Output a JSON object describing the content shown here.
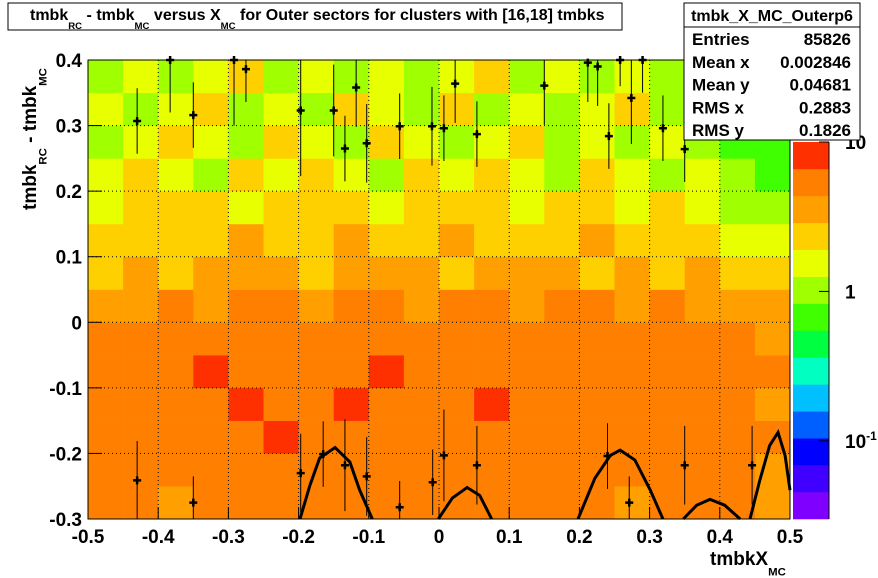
{
  "chart_data": {
    "type": "heatmap",
    "title_parts": [
      {
        "text": "tmbk",
        "sub": false
      },
      {
        "text": "RC",
        "sub": true
      },
      {
        "text": " - tmbk",
        "sub": false
      },
      {
        "text": "MC",
        "sub": true
      },
      {
        "text": " versus X",
        "sub": false
      },
      {
        "text": "MC",
        "sub": true
      },
      {
        "text": " for Outer sectors for clusters with [16,18] tmbks",
        "sub": false
      }
    ],
    "x_label_parts": [
      {
        "text": "tmbkX",
        "sub": false
      },
      {
        "text": "MC",
        "sub": true
      }
    ],
    "y_label_parts": [
      {
        "text": "tmbk",
        "sub": false
      },
      {
        "text": "RC",
        "sub": true
      },
      {
        "text": " - tmbk",
        "sub": false
      },
      {
        "text": "MC",
        "sub": true
      }
    ],
    "xlim": [
      -0.5,
      0.5
    ],
    "ylim": [
      -0.3,
      0.4
    ],
    "xticks": [
      -0.5,
      -0.4,
      -0.3,
      -0.2,
      -0.1,
      0,
      0.1,
      0.2,
      0.3,
      0.4,
      0.5
    ],
    "yticks": [
      -0.3,
      -0.2,
      -0.1,
      0,
      0.1,
      0.2,
      0.3,
      0.4
    ],
    "grid": true,
    "zlim": [
      0.03,
      10
    ],
    "zlog": true,
    "zticks": [
      10,
      1,
      {
        "value": 0.1,
        "label": "10",
        "sup": "-1"
      }
    ],
    "palette": [
      "#7f00ff",
      "#3f00ff",
      "#0000ff",
      "#0060ff",
      "#00c0ff",
      "#00ffc0",
      "#00ff40",
      "#40ff00",
      "#a0ff00",
      "#e8ff00",
      "#ffd000",
      "#ffa000",
      "#ff8000",
      "#ff3000"
    ],
    "xbins": [
      -0.5,
      -0.45,
      -0.4,
      -0.35,
      -0.3,
      -0.25,
      -0.2,
      -0.15,
      -0.1,
      -0.05,
      0,
      0.05,
      0.1,
      0.15,
      0.2,
      0.25,
      0.3,
      0.35,
      0.4,
      0.45,
      0.5
    ],
    "ybins": [
      -0.3,
      -0.25,
      -0.2,
      -0.15,
      -0.1,
      -0.05,
      0,
      0.05,
      0.1,
      0.15,
      0.2,
      0.25,
      0.3,
      0.35,
      0.4
    ],
    "z": [
      [
        4.5,
        5,
        4,
        5.5,
        6,
        5,
        4.5,
        5,
        6,
        5.5,
        5,
        4.5,
        6,
        5,
        5,
        4,
        5,
        4.5,
        5,
        3.5
      ],
      [
        5,
        6,
        5.5,
        5,
        6.5,
        5,
        5.5,
        6,
        5,
        5.5,
        6,
        5,
        5.5,
        6,
        5,
        5,
        5.5,
        5,
        4.5,
        4
      ],
      [
        5.5,
        6,
        6.5,
        5,
        6,
        7,
        6,
        5.5,
        6.5,
        6,
        5.5,
        6,
        6.5,
        6,
        5.5,
        6,
        5,
        5.5,
        5,
        4.5
      ],
      [
        6,
        6.5,
        5.5,
        6,
        7,
        6,
        6.5,
        7,
        6,
        6.5,
        6,
        7,
        6,
        6.5,
        6,
        5.5,
        6,
        5,
        5.5,
        4
      ],
      [
        5.5,
        6,
        6.5,
        7,
        6,
        6.5,
        5.5,
        6,
        7,
        6,
        6.5,
        6,
        5.5,
        6,
        6.5,
        6,
        5.5,
        6,
        5,
        4.5
      ],
      [
        5,
        5.5,
        6,
        5.5,
        6,
        5,
        6,
        5.5,
        5,
        6,
        5.5,
        6,
        5,
        5.5,
        6,
        5,
        5.5,
        5,
        4.5,
        4
      ],
      [
        3.5,
        4,
        4.5,
        4,
        5,
        4.5,
        4,
        5,
        4.5,
        4,
        5,
        4.5,
        4,
        4.5,
        5,
        4,
        4.5,
        4,
        3.5,
        3
      ],
      [
        2.5,
        3,
        2.5,
        3,
        3.5,
        3,
        2.5,
        3,
        3.5,
        3,
        2.5,
        3,
        3.5,
        3,
        2.5,
        3,
        2.5,
        3,
        2.5,
        2
      ],
      [
        2,
        2.5,
        2,
        2.5,
        3,
        2,
        2.5,
        3,
        2,
        2.5,
        3,
        2.5,
        2,
        2.5,
        3,
        2,
        2.5,
        2,
        1.5,
        1.5
      ],
      [
        1.5,
        2,
        2.5,
        2,
        1.5,
        2,
        2.5,
        2,
        1.5,
        2,
        2.5,
        2,
        1.5,
        2,
        2.5,
        1.5,
        2,
        1.5,
        1.2,
        1
      ],
      [
        1.5,
        2,
        1.5,
        1,
        2,
        1.5,
        2,
        1.5,
        1,
        2,
        1.5,
        2,
        1.5,
        1,
        2,
        1.5,
        1,
        1.5,
        1,
        0.8
      ],
      [
        1,
        1.5,
        2,
        1.5,
        1,
        2,
        1.5,
        1,
        2,
        1.5,
        1,
        1.5,
        2,
        1,
        1.5,
        1,
        1.5,
        1,
        0.8,
        0.7
      ],
      [
        1.5,
        1,
        1.5,
        2,
        1,
        1.5,
        1,
        2,
        1.5,
        1,
        2,
        1,
        1.5,
        1,
        1.5,
        2,
        1,
        1.5,
        1,
        0.8
      ],
      [
        1,
        1.5,
        1,
        1.5,
        2,
        1,
        1.5,
        1,
        1.5,
        1,
        1.5,
        2,
        1,
        1.5,
        1,
        1.5,
        1,
        1,
        0.8,
        1
      ]
    ],
    "profile": {
      "color": "#000000",
      "x": [
        -0.43,
        -0.383,
        -0.35,
        -0.292,
        -0.275,
        -0.197,
        -0.15,
        -0.134,
        -0.118,
        -0.103,
        -0.056,
        -0.01,
        0.007,
        0.023,
        0.054,
        0.15,
        0.212,
        0.226,
        0.242,
        0.258,
        0.274,
        0.29,
        0.319,
        0.35,
        -0.43,
        -0.35,
        -0.197,
        -0.165,
        -0.134,
        -0.103,
        -0.056,
        -0.009,
        0.007,
        0.054,
        0.24,
        0.271,
        0.35,
        0.446
      ],
      "y": [
        0.307,
        0.4,
        0.316,
        0.4,
        0.386,
        0.323,
        0.323,
        0.265,
        0.358,
        0.273,
        0.299,
        0.299,
        0.296,
        0.364,
        0.287,
        0.361,
        0.396,
        0.39,
        0.284,
        0.4,
        0.342,
        0.4,
        0.296,
        0.264,
        -0.241,
        -0.275,
        -0.23,
        -0.201,
        -0.218,
        -0.235,
        -0.282,
        -0.244,
        -0.203,
        -0.218,
        -0.204,
        -0.275,
        -0.218,
        -0.218
      ],
      "yerr": [
        0.05,
        0.08,
        0.05,
        0.1,
        0.05,
        0.1,
        0.07,
        0.05,
        0.06,
        0.06,
        0.05,
        0.06,
        0.05,
        0.06,
        0.05,
        0.06,
        0.06,
        0.06,
        0.05,
        0.04,
        0.07,
        0.05,
        0.05,
        0.05,
        0.06,
        0.04,
        0.06,
        0.05,
        0.07,
        0.06,
        0.04,
        0.05,
        0.07,
        0.06,
        0.05,
        0.04,
        0.06,
        0.06
      ]
    },
    "fit": {
      "color": "#000000",
      "x": [
        -0.198,
        -0.184,
        -0.17,
        -0.148,
        -0.127,
        -0.113,
        -0.095,
        null,
        -0.001,
        0.019,
        0.04,
        0.058,
        0.075,
        null,
        0.198,
        0.222,
        0.244,
        0.258,
        0.279,
        0.301,
        0.319,
        null,
        0.348,
        0.367,
        0.386,
        0.407,
        0.429,
        null,
        0.443,
        0.457,
        0.471,
        0.483,
        0.493,
        0.5
      ],
      "y": [
        -0.3,
        -0.249,
        -0.207,
        -0.191,
        -0.213,
        -0.256,
        -0.3,
        null,
        -0.3,
        -0.268,
        -0.252,
        -0.264,
        -0.3,
        null,
        -0.3,
        -0.238,
        -0.203,
        -0.195,
        -0.21,
        -0.256,
        -0.3,
        null,
        -0.3,
        -0.279,
        -0.27,
        -0.279,
        -0.3,
        null,
        -0.3,
        -0.241,
        -0.188,
        -0.168,
        -0.203,
        -0.256
      ]
    },
    "stats": {
      "name": "tmbk_X_MC_Outerp6",
      "rows": [
        {
          "label": "Entries",
          "value": 85826
        },
        {
          "label": "Mean x",
          "value": 0.002846
        },
        {
          "label": "Mean y",
          "value": 0.04681
        },
        {
          "label": "RMS x",
          "value": 0.2883
        },
        {
          "label": "RMS y",
          "value": 0.1826
        }
      ]
    }
  }
}
